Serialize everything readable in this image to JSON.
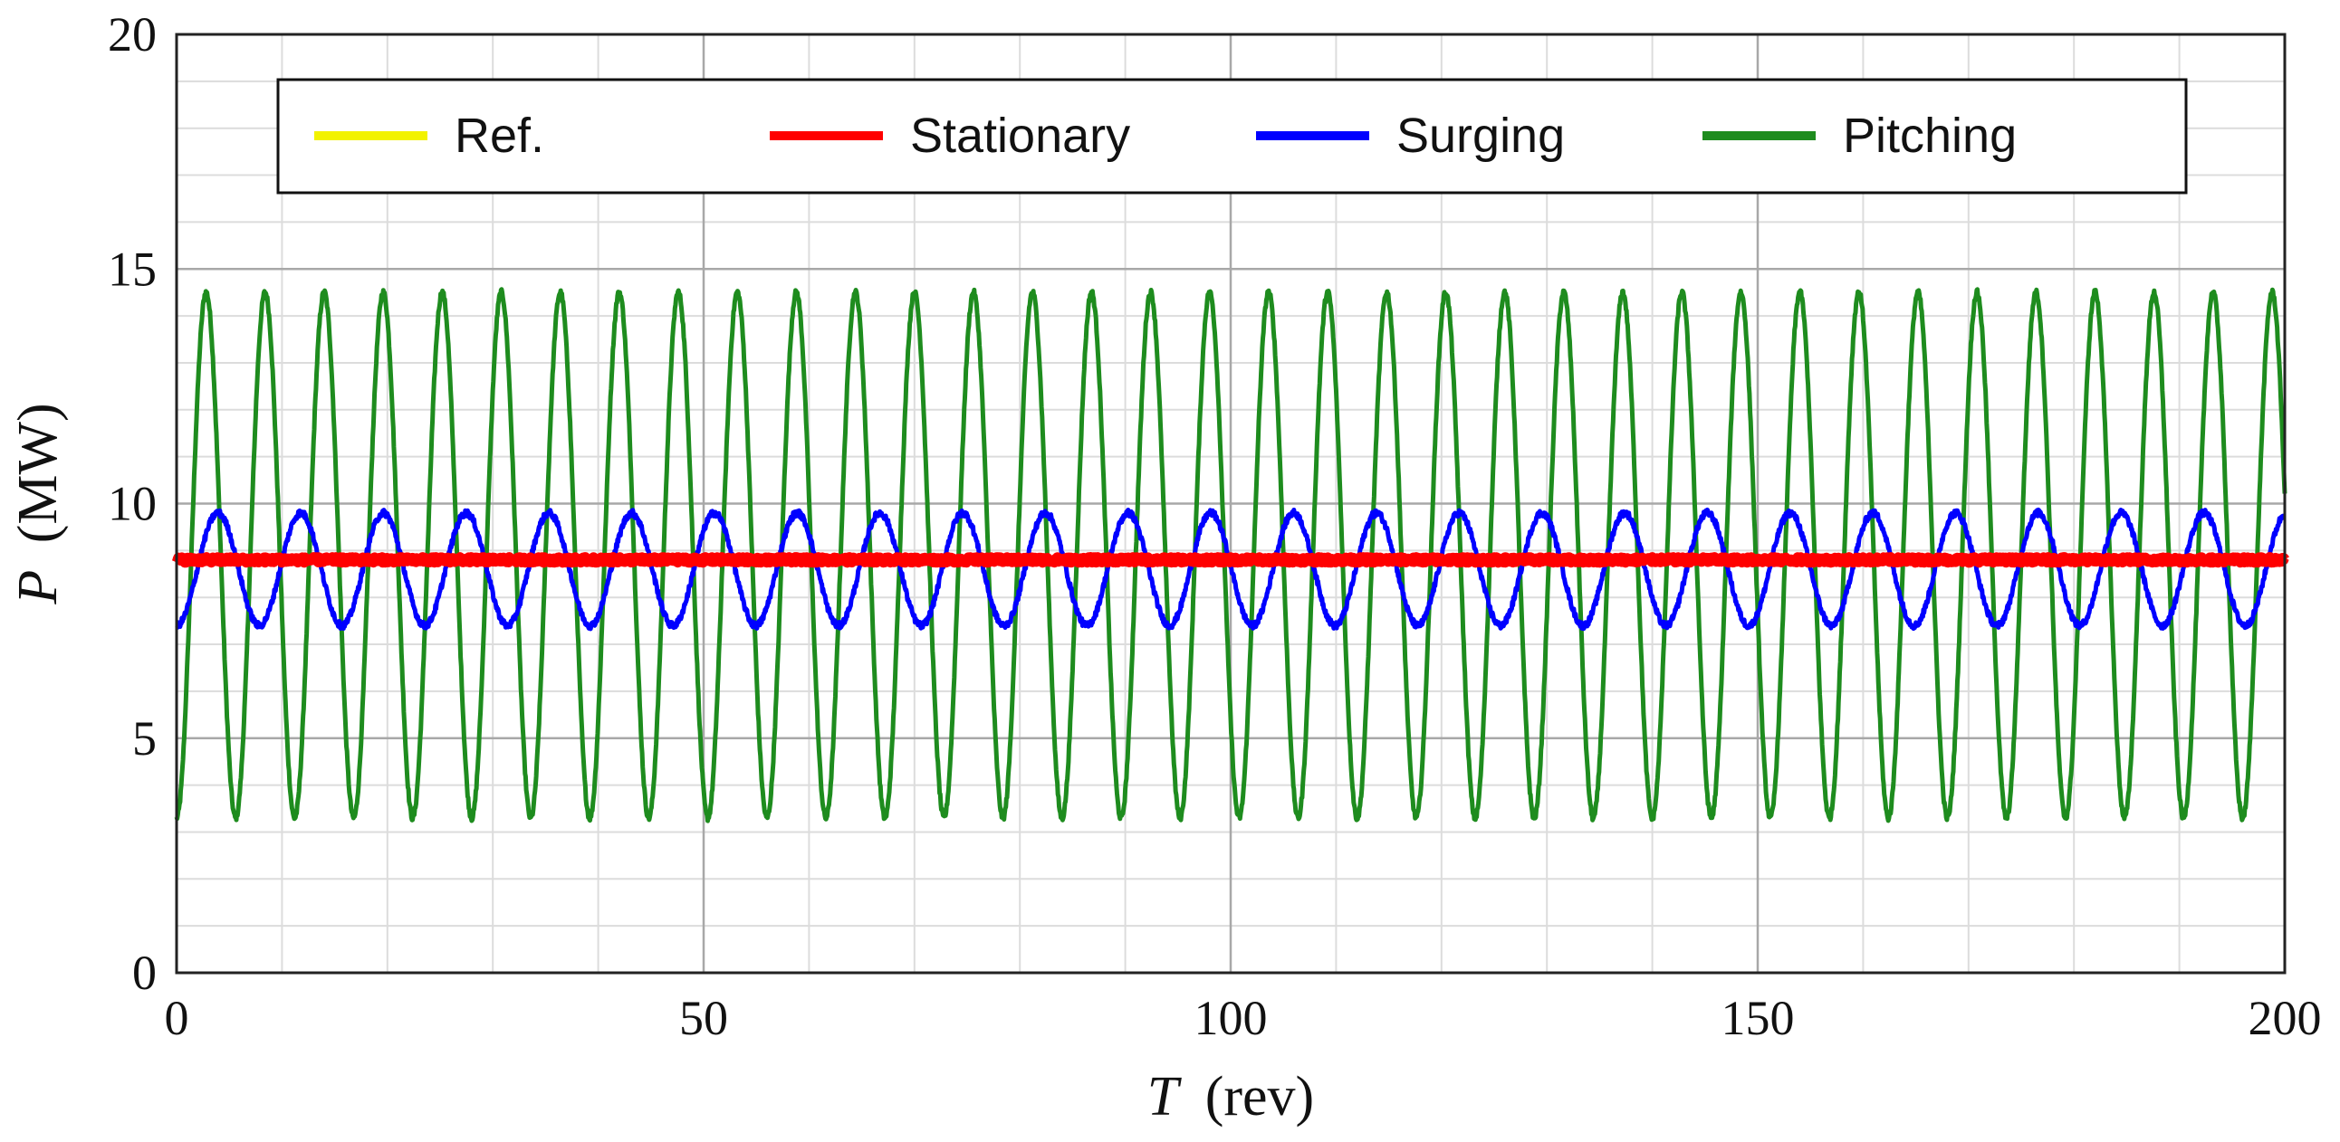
{
  "chart_data": {
    "type": "line",
    "xlabel_var": "T",
    "xlabel_unit": "(rev)",
    "ylabel_var": "P",
    "ylabel_unit": "(MW)",
    "xlim": [
      0,
      200
    ],
    "ylim": [
      0,
      20
    ],
    "x_major_ticks": [
      0,
      50,
      100,
      150,
      200
    ],
    "y_major_ticks": [
      0,
      5,
      10,
      15,
      20
    ],
    "x_tick_labels": [
      "0",
      "50",
      "100",
      "150",
      "200"
    ],
    "y_tick_labels": [
      "0",
      "5",
      "10",
      "15",
      "20"
    ],
    "x_minor_step": 10,
    "y_minor_step": 1,
    "grid": true,
    "legend_position": "top",
    "series": [
      {
        "name": "Ref.",
        "color": "#f2f200",
        "kind": "constant",
        "mean": 8.8
      },
      {
        "name": "Stationary",
        "color": "#ff0000",
        "kind": "constant",
        "mean": 8.8,
        "noise": 0.12
      },
      {
        "name": "Surging",
        "color": "#0000ff",
        "kind": "oscillation",
        "mean": 8.6,
        "amplitude": 1.2,
        "period_rev": 7.85,
        "min": 7.4,
        "max": 10.0
      },
      {
        "name": "Pitching",
        "color": "#1e8c1e",
        "kind": "oscillation",
        "mean": 8.9,
        "amplitude": 5.6,
        "period_rev": 5.6,
        "min": 3.2,
        "max": 14.6
      }
    ]
  }
}
